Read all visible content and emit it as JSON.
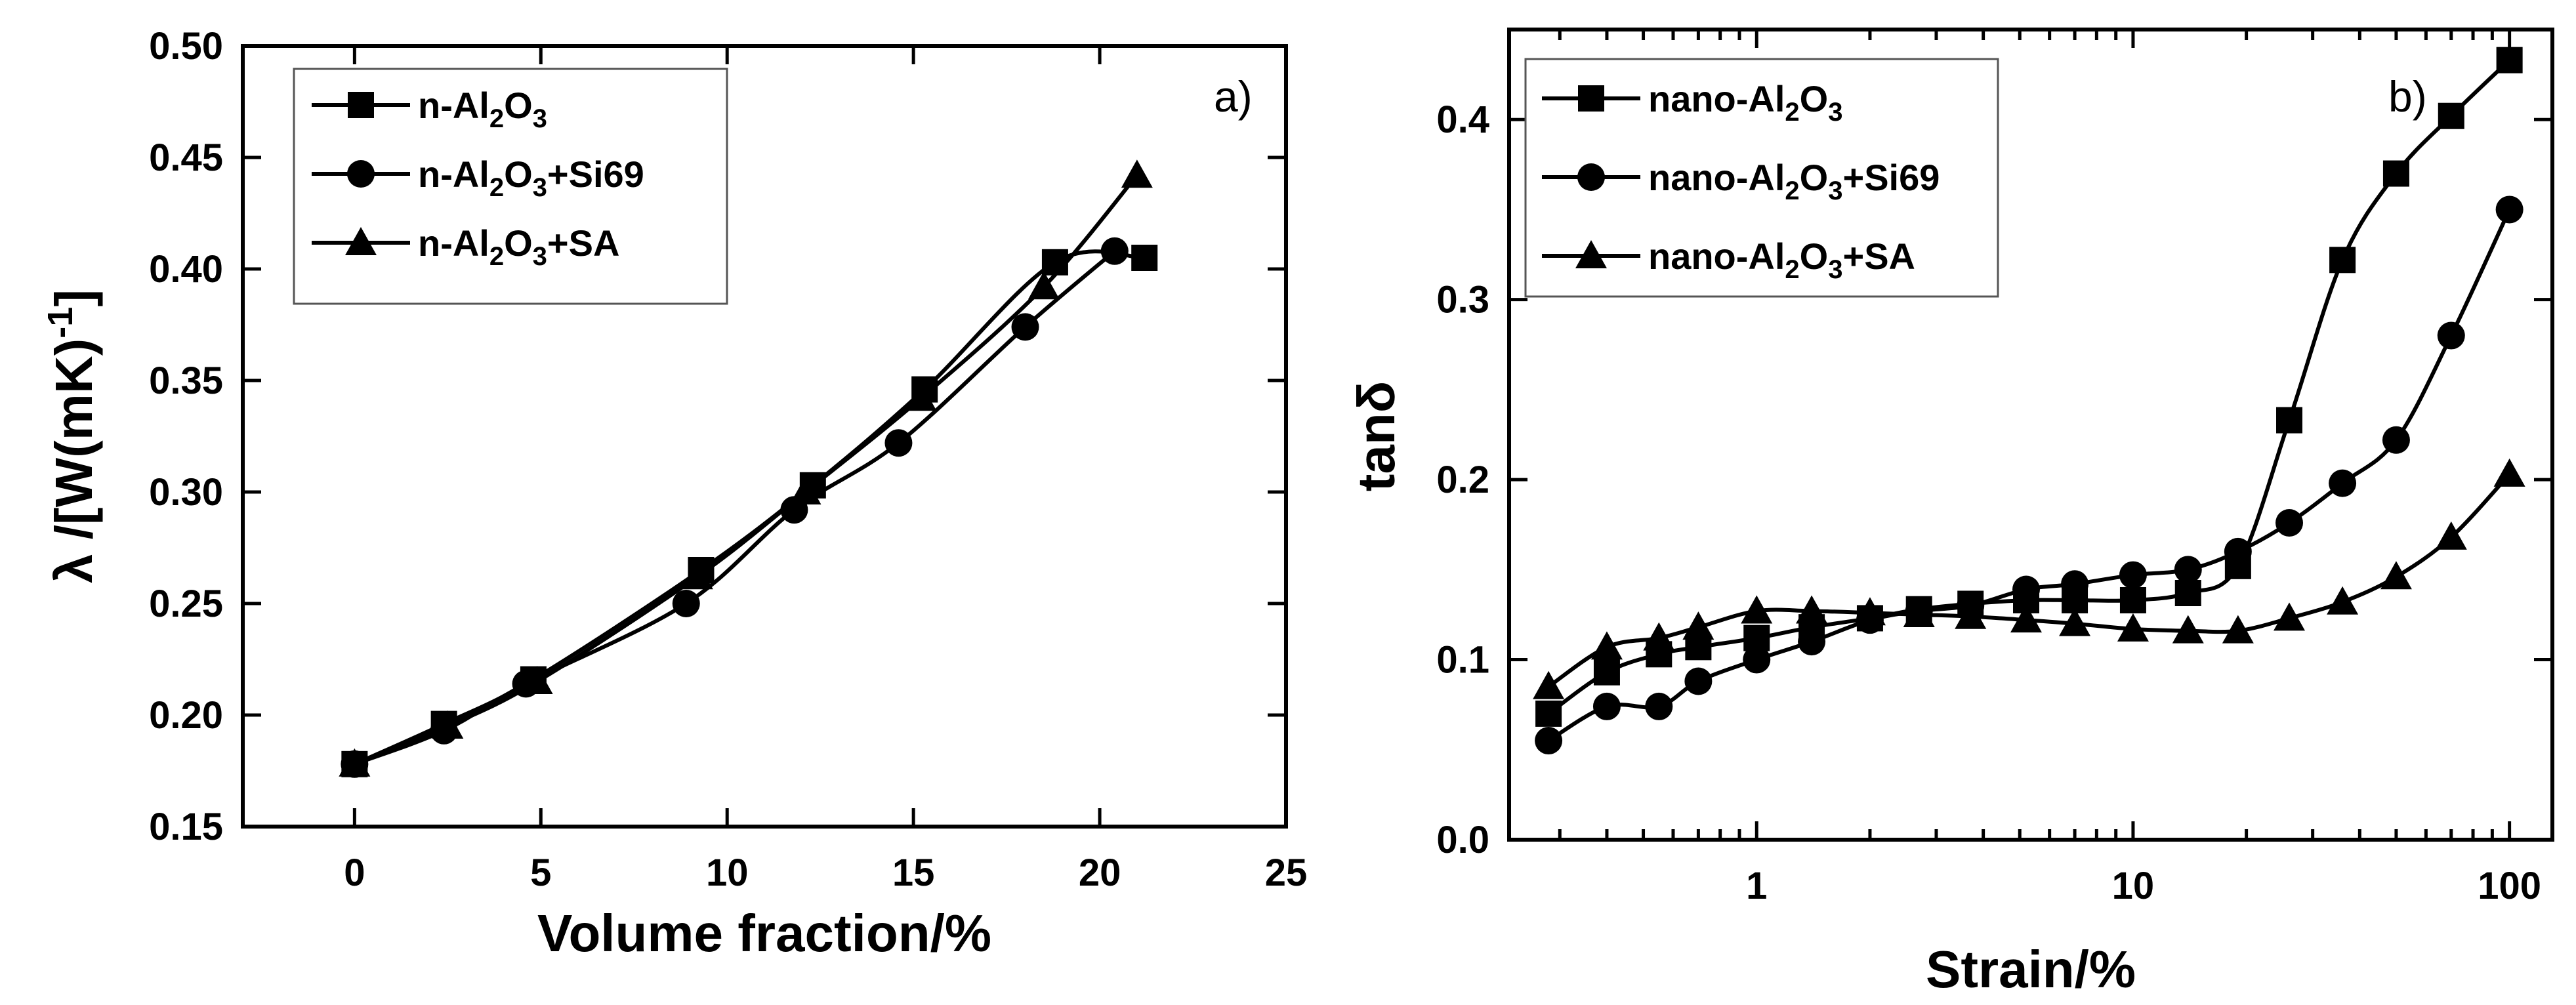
{
  "chart_data": [
    {
      "type": "line",
      "panel_label": "a)",
      "xlabel": "Volume fraction/%",
      "ylabel": "λ /[W(mK)",
      "ylabel_superscript": "-1",
      "ylabel_close": "]",
      "xlim": [
        -3,
        25
      ],
      "ylim": [
        0.15,
        0.5
      ],
      "xticks": [
        0,
        5,
        10,
        15,
        20,
        25
      ],
      "xtick_labels": [
        "0",
        "5",
        "10",
        "15",
        "20",
        "25"
      ],
      "yticks": [
        0.15,
        0.2,
        0.25,
        0.3,
        0.35,
        0.4,
        0.45,
        0.5
      ],
      "ytick_labels": [
        "0.15",
        "0.20",
        "0.25",
        "0.30",
        "0.35",
        "0.40",
        "0.45",
        "0.50"
      ],
      "legend_position": "top-left",
      "series": [
        {
          "name": "n-Al2O3",
          "label_parts": [
            [
              "n-Al",
              false
            ],
            [
              "2",
              true
            ],
            [
              "O",
              false
            ],
            [
              "3",
              true
            ]
          ],
          "marker": "square",
          "x": [
            0,
            2.4,
            4.8,
            9.3,
            12.3,
            15.3,
            18.8,
            21.2
          ],
          "y": [
            0.178,
            0.196,
            0.216,
            0.265,
            0.303,
            0.346,
            0.403,
            0.405
          ]
        },
        {
          "name": "n-Al2O3+Si69",
          "label_parts": [
            [
              "n-Al",
              false
            ],
            [
              "2",
              true
            ],
            [
              "O",
              false
            ],
            [
              "3",
              true
            ],
            [
              "+Si69",
              false
            ]
          ],
          "marker": "circle",
          "x": [
            0,
            2.4,
            4.6,
            8.9,
            11.8,
            14.6,
            18.0,
            20.4
          ],
          "y": [
            0.178,
            0.193,
            0.214,
            0.25,
            0.292,
            0.322,
            0.374,
            0.408
          ]
        },
        {
          "name": "n-Al2O3+SA",
          "label_parts": [
            [
              "n-Al",
              false
            ],
            [
              "2",
              true
            ],
            [
              "O",
              false
            ],
            [
              "3",
              true
            ],
            [
              "+SA",
              false
            ]
          ],
          "marker": "triangle",
          "x": [
            0,
            2.5,
            4.9,
            9.2,
            12.1,
            15.2,
            18.5,
            21.0
          ],
          "y": [
            0.178,
            0.195,
            0.215,
            0.262,
            0.3,
            0.342,
            0.392,
            0.442
          ]
        }
      ]
    },
    {
      "type": "line",
      "panel_label": "b)",
      "xlabel": "Strain/%",
      "ylabel": "tanδ",
      "xscale": "log",
      "xlim": [
        0.22,
        130
      ],
      "ylim": [
        0.0,
        0.45
      ],
      "xticks": [
        1,
        10,
        100
      ],
      "xtick_labels": [
        "1",
        "10",
        "100"
      ],
      "yticks": [
        0.0,
        0.1,
        0.2,
        0.3,
        0.4
      ],
      "ytick_labels": [
        "0.0",
        "0.1",
        "0.2",
        "0.3",
        "0.4"
      ],
      "legend_position": "top-left",
      "series": [
        {
          "name": "nano-Al2O3",
          "label_parts": [
            [
              "nano-Al",
              false
            ],
            [
              "2",
              true
            ],
            [
              "O",
              false
            ],
            [
              "3",
              true
            ]
          ],
          "marker": "square",
          "x": [
            0.28,
            0.4,
            0.55,
            0.7,
            1.0,
            1.4,
            2.0,
            2.7,
            3.7,
            5.2,
            7.0,
            10,
            14,
            19,
            26,
            36,
            50,
            70,
            100
          ],
          "y": [
            0.07,
            0.093,
            0.103,
            0.107,
            0.112,
            0.118,
            0.123,
            0.128,
            0.131,
            0.133,
            0.133,
            0.133,
            0.137,
            0.152,
            0.233,
            0.322,
            0.37,
            0.402,
            0.433
          ]
        },
        {
          "name": "nano-Al2O3+Si69",
          "label_parts": [
            [
              "nano-Al",
              false
            ],
            [
              "2",
              true
            ],
            [
              "O",
              false
            ],
            [
              "3",
              true
            ],
            [
              "+Si69",
              false
            ]
          ],
          "marker": "circle",
          "x": [
            0.28,
            0.4,
            0.55,
            0.7,
            1.0,
            1.4,
            2.0,
            2.7,
            3.7,
            5.2,
            7.0,
            10,
            14,
            19,
            26,
            36,
            50,
            70,
            100
          ],
          "y": [
            0.055,
            0.074,
            0.074,
            0.088,
            0.1,
            0.11,
            0.122,
            0.127,
            0.13,
            0.139,
            0.142,
            0.147,
            0.15,
            0.16,
            0.176,
            0.198,
            0.222,
            0.28,
            0.35
          ]
        },
        {
          "name": "nano-Al2O3+SA",
          "label_parts": [
            [
              "nano-Al",
              false
            ],
            [
              "2",
              true
            ],
            [
              "O",
              false
            ],
            [
              "3",
              true
            ],
            [
              "+SA",
              false
            ]
          ],
          "marker": "triangle",
          "x": [
            0.28,
            0.4,
            0.55,
            0.7,
            1.0,
            1.4,
            2.0,
            2.7,
            3.7,
            5.2,
            7.0,
            10,
            14,
            19,
            26,
            36,
            50,
            70,
            100
          ],
          "y": [
            0.085,
            0.107,
            0.112,
            0.118,
            0.127,
            0.127,
            0.126,
            0.125,
            0.124,
            0.122,
            0.12,
            0.117,
            0.116,
            0.116,
            0.123,
            0.132,
            0.146,
            0.168,
            0.203
          ]
        }
      ]
    }
  ]
}
